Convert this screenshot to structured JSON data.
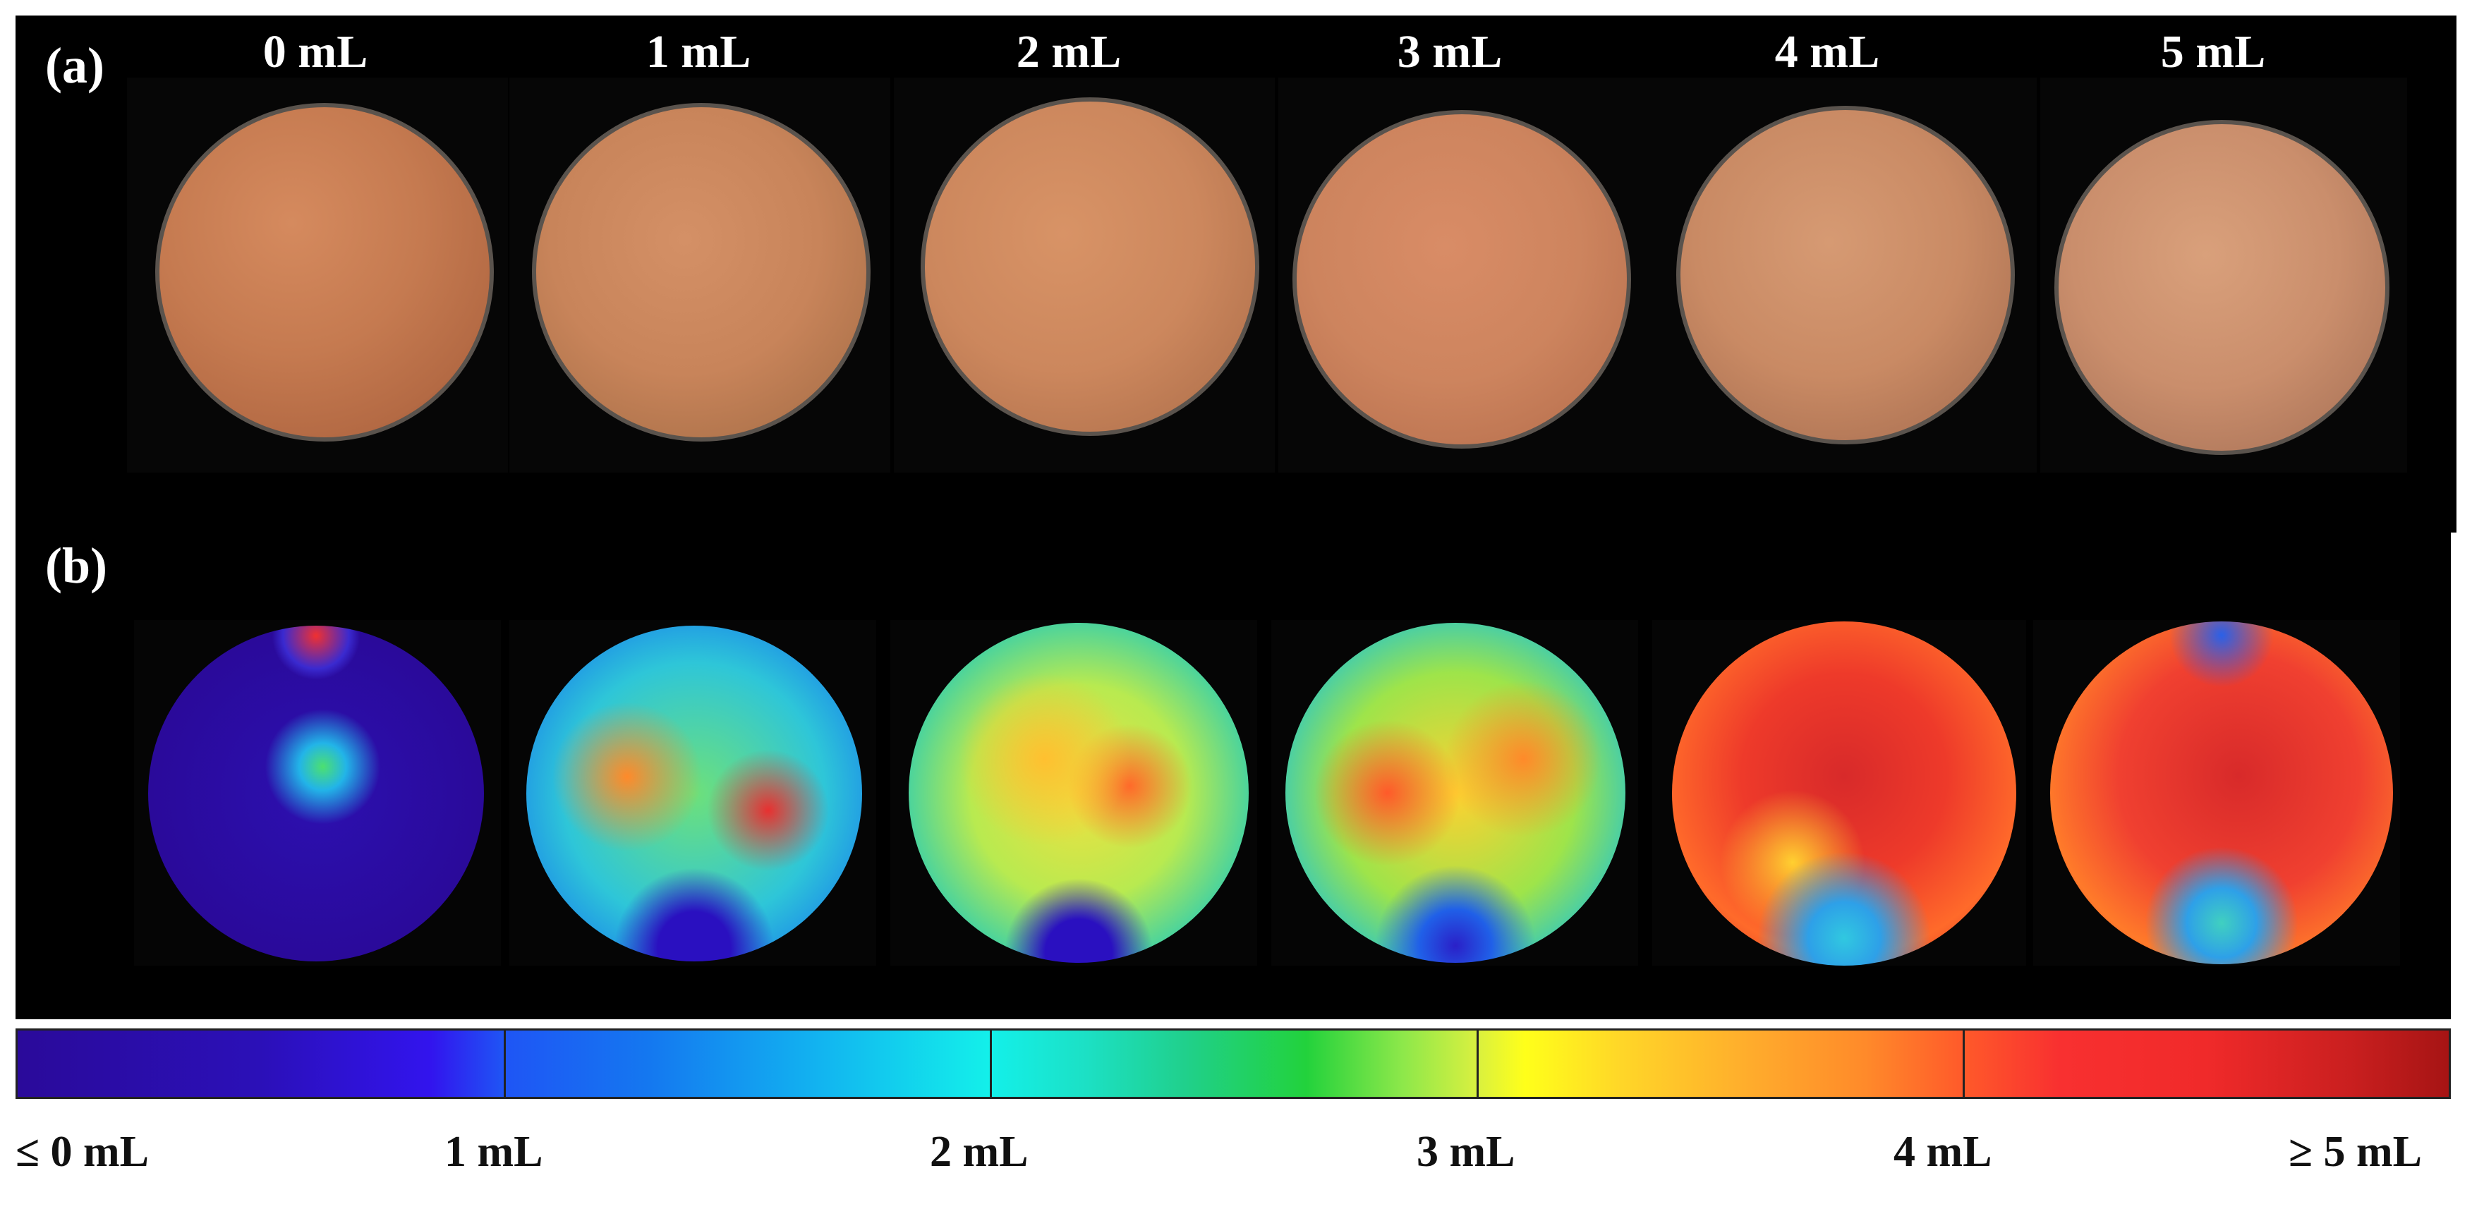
{
  "panel_a": {
    "label": "(a)",
    "columns": [
      "0 mL",
      "1 mL",
      "2 mL",
      "3 mL",
      "4 mL",
      "5 mL"
    ]
  },
  "panel_b": {
    "label": "(b)"
  },
  "colorbar": {
    "tick_labels": [
      "≤ 0 mL",
      "1 mL",
      "2 mL",
      "3 mL",
      "4 mL",
      "≥ 5 mL"
    ],
    "colors": [
      "#2a0a9a",
      "#3214ee",
      "#13f0ea",
      "#ffff1a",
      "#f83030",
      "#a61414"
    ]
  },
  "colors": {
    "background": "#000000",
    "sample": "#c97a55"
  }
}
